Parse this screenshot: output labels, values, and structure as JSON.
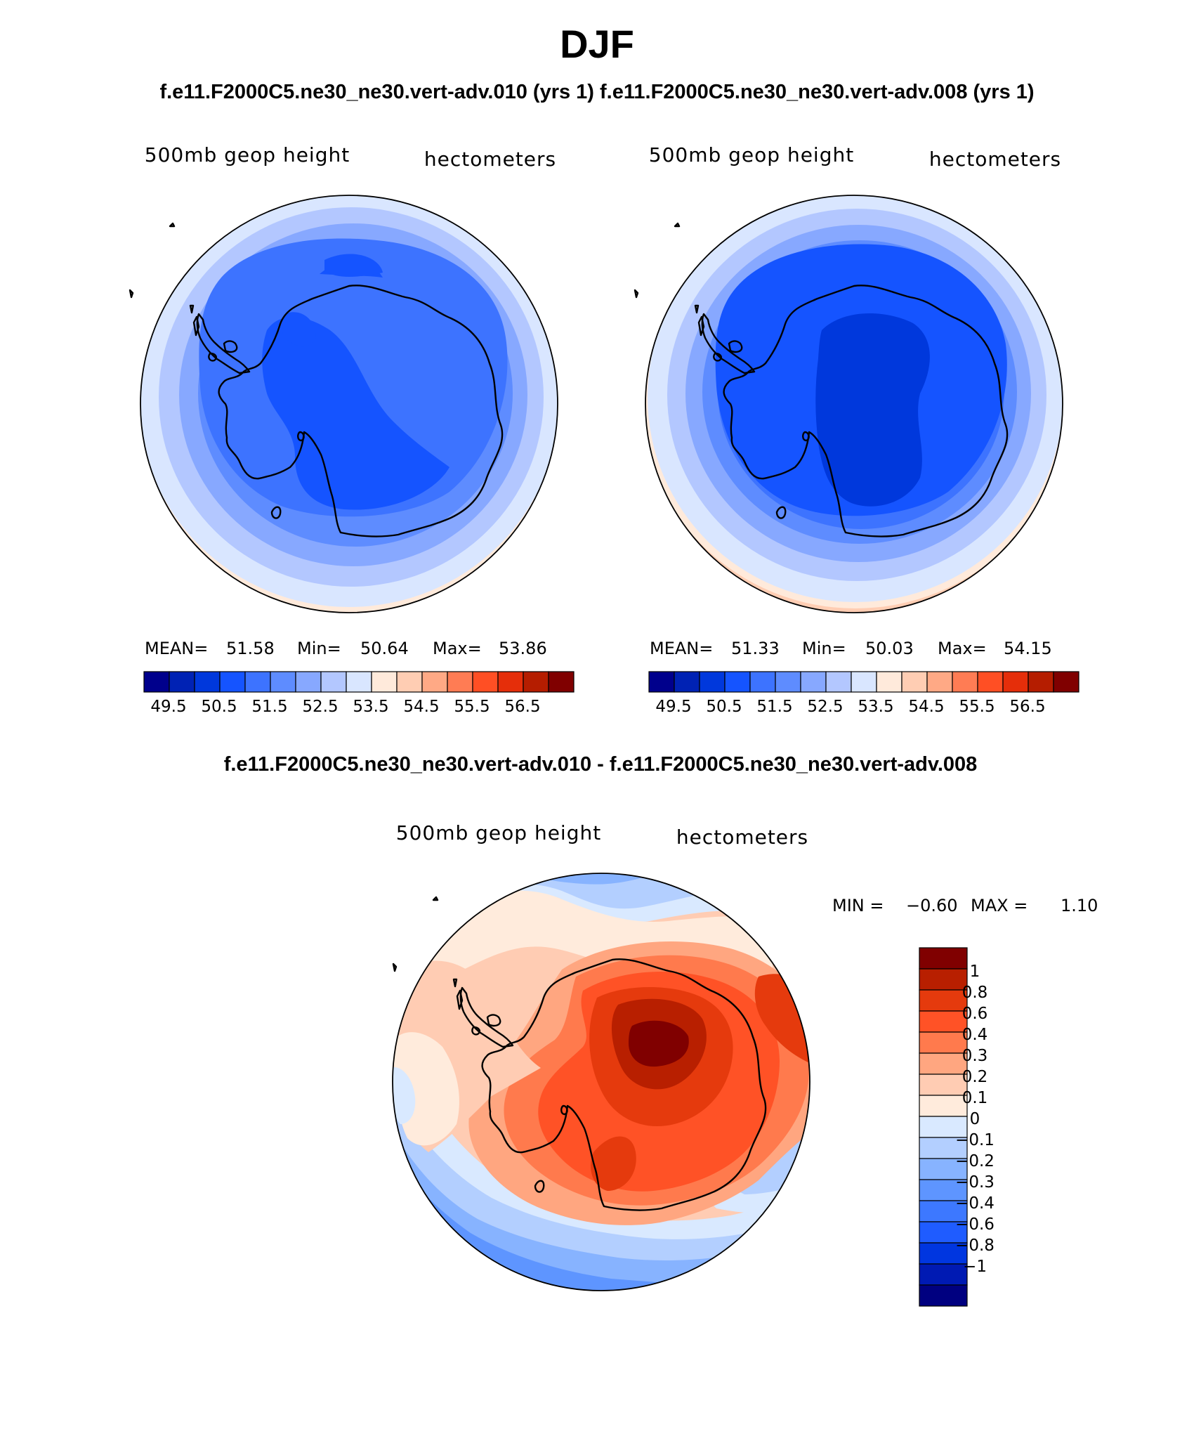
{
  "title": "DJF",
  "subtitle": "f.e11.F2000C5.ne30_ne30.vert-adv.010 (yrs 1) f.e11.F2000C5.ne30_ne30.vert-adv.008 (yrs 1)",
  "diff_title": "f.e11.F2000C5.ne30_ne30.vert-adv.010 - f.e11.F2000C5.ne30_ne30.vert-adv.008",
  "colors": {
    "abs": [
      "#00008c",
      "#0022b4",
      "#0038dc",
      "#1554ff",
      "#3d73ff",
      "#5e8cff",
      "#87a8ff",
      "#b3c7ff",
      "#d9e6ff",
      "#ffeadb",
      "#ffcdb3",
      "#ffa985",
      "#ff7c54",
      "#ff4f24",
      "#e52e0a",
      "#b51d00",
      "#800000"
    ],
    "diff": [
      "#000080",
      "#001ab3",
      "#0036e0",
      "#1f5cff",
      "#3d78ff",
      "#5e95ff",
      "#87b3ff",
      "#b3cfff",
      "#d9e9ff",
      "#ffebdc",
      "#ffccb3",
      "#ffa680",
      "#ff7a4d",
      "#ff5226",
      "#e53a0d",
      "#b81f00",
      "#800000"
    ]
  },
  "panels": [
    {
      "var_label": "500mb geop height",
      "units": "hectometers",
      "stats": {
        "mean_label": "MEAN=",
        "mean": "51.58",
        "min_label": "Min=",
        "min": "50.64",
        "max_label": "Max=",
        "max": "53.86"
      },
      "colorbar_labels": [
        "49.5",
        "50.5",
        "51.5",
        "52.5",
        "53.5",
        "54.5",
        "55.5",
        "56.5"
      ]
    },
    {
      "var_label": "500mb geop height",
      "units": "hectometers",
      "stats": {
        "mean_label": "MEAN=",
        "mean": "51.33",
        "min_label": "Min=",
        "min": "50.03",
        "max_label": "Max=",
        "max": "54.15"
      },
      "colorbar_labels": [
        "49.5",
        "50.5",
        "51.5",
        "52.5",
        "53.5",
        "54.5",
        "55.5",
        "56.5"
      ]
    }
  ],
  "diff_panel": {
    "var_label": "500mb geop height",
    "units": "hectometers",
    "min_label": "MIN =",
    "min": "−0.60",
    "max_label": "MAX =",
    "max": "1.10",
    "colorbar_labels": [
      "1",
      "0.8",
      "0.6",
      "0.4",
      "0.3",
      "0.2",
      "0.1",
      "0",
      "−0.1",
      "−0.2",
      "−0.3",
      "−0.4",
      "−0.6",
      "−0.8",
      "−1"
    ]
  }
}
